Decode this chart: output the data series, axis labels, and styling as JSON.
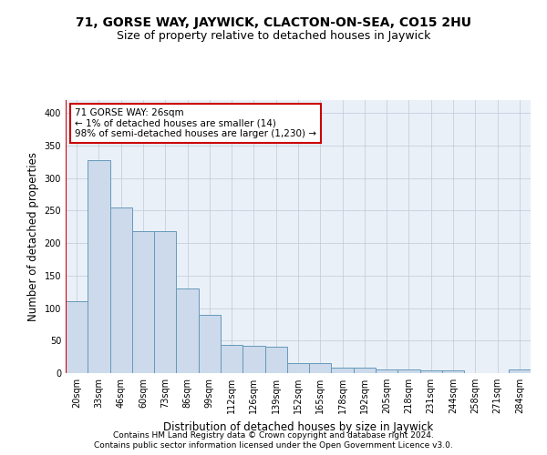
{
  "title": "71, GORSE WAY, JAYWICK, CLACTON-ON-SEA, CO15 2HU",
  "subtitle": "Size of property relative to detached houses in Jaywick",
  "xlabel": "Distribution of detached houses by size in Jaywick",
  "ylabel": "Number of detached properties",
  "footer_line1": "Contains HM Land Registry data © Crown copyright and database right 2024.",
  "footer_line2": "Contains public sector information licensed under the Open Government Licence v3.0.",
  "categories": [
    "20sqm",
    "33sqm",
    "46sqm",
    "60sqm",
    "73sqm",
    "86sqm",
    "99sqm",
    "112sqm",
    "126sqm",
    "139sqm",
    "152sqm",
    "165sqm",
    "178sqm",
    "192sqm",
    "205sqm",
    "218sqm",
    "231sqm",
    "244sqm",
    "258sqm",
    "271sqm",
    "284sqm"
  ],
  "values": [
    110,
    328,
    255,
    218,
    218,
    130,
    90,
    43,
    42,
    40,
    15,
    15,
    9,
    9,
    6,
    6,
    4,
    4,
    0,
    0,
    5
  ],
  "bar_color": "#ccdaeb",
  "bar_edge_color": "#6699bb",
  "highlight_color": "#cc0000",
  "annotation_text": "71 GORSE WAY: 26sqm\n← 1% of detached houses are smaller (14)\n98% of semi-detached houses are larger (1,230) →",
  "annotation_box_color": "#ffffff",
  "annotation_box_edge": "#cc0000",
  "ylim": [
    0,
    420
  ],
  "yticks": [
    0,
    50,
    100,
    150,
    200,
    250,
    300,
    350,
    400
  ],
  "bg_color": "#eaf0f8",
  "fig_bg_color": "#ffffff",
  "grid_color": "#c0c8d8",
  "title_fontsize": 10,
  "subtitle_fontsize": 9,
  "axis_label_fontsize": 8.5,
  "tick_fontsize": 7,
  "footer_fontsize": 6.5,
  "annotation_fontsize": 7.5
}
